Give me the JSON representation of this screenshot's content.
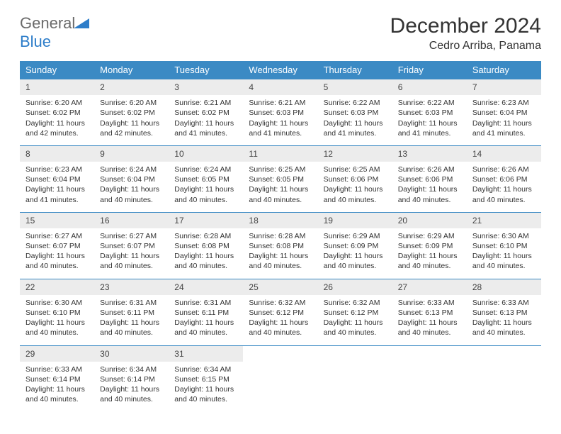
{
  "logo": {
    "general": "General",
    "blue": "Blue"
  },
  "title": "December 2024",
  "location": "Cedro Arriba, Panama",
  "colors": {
    "header_bg": "#3b8ac4",
    "header_text": "#ffffff",
    "daynum_bg": "#ececec",
    "border": "#3b8ac4",
    "logo_gray": "#6a6a6a",
    "logo_blue": "#2d7dc9"
  },
  "weekdays": [
    "Sunday",
    "Monday",
    "Tuesday",
    "Wednesday",
    "Thursday",
    "Friday",
    "Saturday"
  ],
  "weeks": [
    [
      {
        "n": "1",
        "sr": "Sunrise: 6:20 AM",
        "ss": "Sunset: 6:02 PM",
        "dl": "Daylight: 11 hours and 42 minutes."
      },
      {
        "n": "2",
        "sr": "Sunrise: 6:20 AM",
        "ss": "Sunset: 6:02 PM",
        "dl": "Daylight: 11 hours and 42 minutes."
      },
      {
        "n": "3",
        "sr": "Sunrise: 6:21 AM",
        "ss": "Sunset: 6:02 PM",
        "dl": "Daylight: 11 hours and 41 minutes."
      },
      {
        "n": "4",
        "sr": "Sunrise: 6:21 AM",
        "ss": "Sunset: 6:03 PM",
        "dl": "Daylight: 11 hours and 41 minutes."
      },
      {
        "n": "5",
        "sr": "Sunrise: 6:22 AM",
        "ss": "Sunset: 6:03 PM",
        "dl": "Daylight: 11 hours and 41 minutes."
      },
      {
        "n": "6",
        "sr": "Sunrise: 6:22 AM",
        "ss": "Sunset: 6:03 PM",
        "dl": "Daylight: 11 hours and 41 minutes."
      },
      {
        "n": "7",
        "sr": "Sunrise: 6:23 AM",
        "ss": "Sunset: 6:04 PM",
        "dl": "Daylight: 11 hours and 41 minutes."
      }
    ],
    [
      {
        "n": "8",
        "sr": "Sunrise: 6:23 AM",
        "ss": "Sunset: 6:04 PM",
        "dl": "Daylight: 11 hours and 41 minutes."
      },
      {
        "n": "9",
        "sr": "Sunrise: 6:24 AM",
        "ss": "Sunset: 6:04 PM",
        "dl": "Daylight: 11 hours and 40 minutes."
      },
      {
        "n": "10",
        "sr": "Sunrise: 6:24 AM",
        "ss": "Sunset: 6:05 PM",
        "dl": "Daylight: 11 hours and 40 minutes."
      },
      {
        "n": "11",
        "sr": "Sunrise: 6:25 AM",
        "ss": "Sunset: 6:05 PM",
        "dl": "Daylight: 11 hours and 40 minutes."
      },
      {
        "n": "12",
        "sr": "Sunrise: 6:25 AM",
        "ss": "Sunset: 6:06 PM",
        "dl": "Daylight: 11 hours and 40 minutes."
      },
      {
        "n": "13",
        "sr": "Sunrise: 6:26 AM",
        "ss": "Sunset: 6:06 PM",
        "dl": "Daylight: 11 hours and 40 minutes."
      },
      {
        "n": "14",
        "sr": "Sunrise: 6:26 AM",
        "ss": "Sunset: 6:06 PM",
        "dl": "Daylight: 11 hours and 40 minutes."
      }
    ],
    [
      {
        "n": "15",
        "sr": "Sunrise: 6:27 AM",
        "ss": "Sunset: 6:07 PM",
        "dl": "Daylight: 11 hours and 40 minutes."
      },
      {
        "n": "16",
        "sr": "Sunrise: 6:27 AM",
        "ss": "Sunset: 6:07 PM",
        "dl": "Daylight: 11 hours and 40 minutes."
      },
      {
        "n": "17",
        "sr": "Sunrise: 6:28 AM",
        "ss": "Sunset: 6:08 PM",
        "dl": "Daylight: 11 hours and 40 minutes."
      },
      {
        "n": "18",
        "sr": "Sunrise: 6:28 AM",
        "ss": "Sunset: 6:08 PM",
        "dl": "Daylight: 11 hours and 40 minutes."
      },
      {
        "n": "19",
        "sr": "Sunrise: 6:29 AM",
        "ss": "Sunset: 6:09 PM",
        "dl": "Daylight: 11 hours and 40 minutes."
      },
      {
        "n": "20",
        "sr": "Sunrise: 6:29 AM",
        "ss": "Sunset: 6:09 PM",
        "dl": "Daylight: 11 hours and 40 minutes."
      },
      {
        "n": "21",
        "sr": "Sunrise: 6:30 AM",
        "ss": "Sunset: 6:10 PM",
        "dl": "Daylight: 11 hours and 40 minutes."
      }
    ],
    [
      {
        "n": "22",
        "sr": "Sunrise: 6:30 AM",
        "ss": "Sunset: 6:10 PM",
        "dl": "Daylight: 11 hours and 40 minutes."
      },
      {
        "n": "23",
        "sr": "Sunrise: 6:31 AM",
        "ss": "Sunset: 6:11 PM",
        "dl": "Daylight: 11 hours and 40 minutes."
      },
      {
        "n": "24",
        "sr": "Sunrise: 6:31 AM",
        "ss": "Sunset: 6:11 PM",
        "dl": "Daylight: 11 hours and 40 minutes."
      },
      {
        "n": "25",
        "sr": "Sunrise: 6:32 AM",
        "ss": "Sunset: 6:12 PM",
        "dl": "Daylight: 11 hours and 40 minutes."
      },
      {
        "n": "26",
        "sr": "Sunrise: 6:32 AM",
        "ss": "Sunset: 6:12 PM",
        "dl": "Daylight: 11 hours and 40 minutes."
      },
      {
        "n": "27",
        "sr": "Sunrise: 6:33 AM",
        "ss": "Sunset: 6:13 PM",
        "dl": "Daylight: 11 hours and 40 minutes."
      },
      {
        "n": "28",
        "sr": "Sunrise: 6:33 AM",
        "ss": "Sunset: 6:13 PM",
        "dl": "Daylight: 11 hours and 40 minutes."
      }
    ],
    [
      {
        "n": "29",
        "sr": "Sunrise: 6:33 AM",
        "ss": "Sunset: 6:14 PM",
        "dl": "Daylight: 11 hours and 40 minutes."
      },
      {
        "n": "30",
        "sr": "Sunrise: 6:34 AM",
        "ss": "Sunset: 6:14 PM",
        "dl": "Daylight: 11 hours and 40 minutes."
      },
      {
        "n": "31",
        "sr": "Sunrise: 6:34 AM",
        "ss": "Sunset: 6:15 PM",
        "dl": "Daylight: 11 hours and 40 minutes."
      },
      null,
      null,
      null,
      null
    ]
  ]
}
